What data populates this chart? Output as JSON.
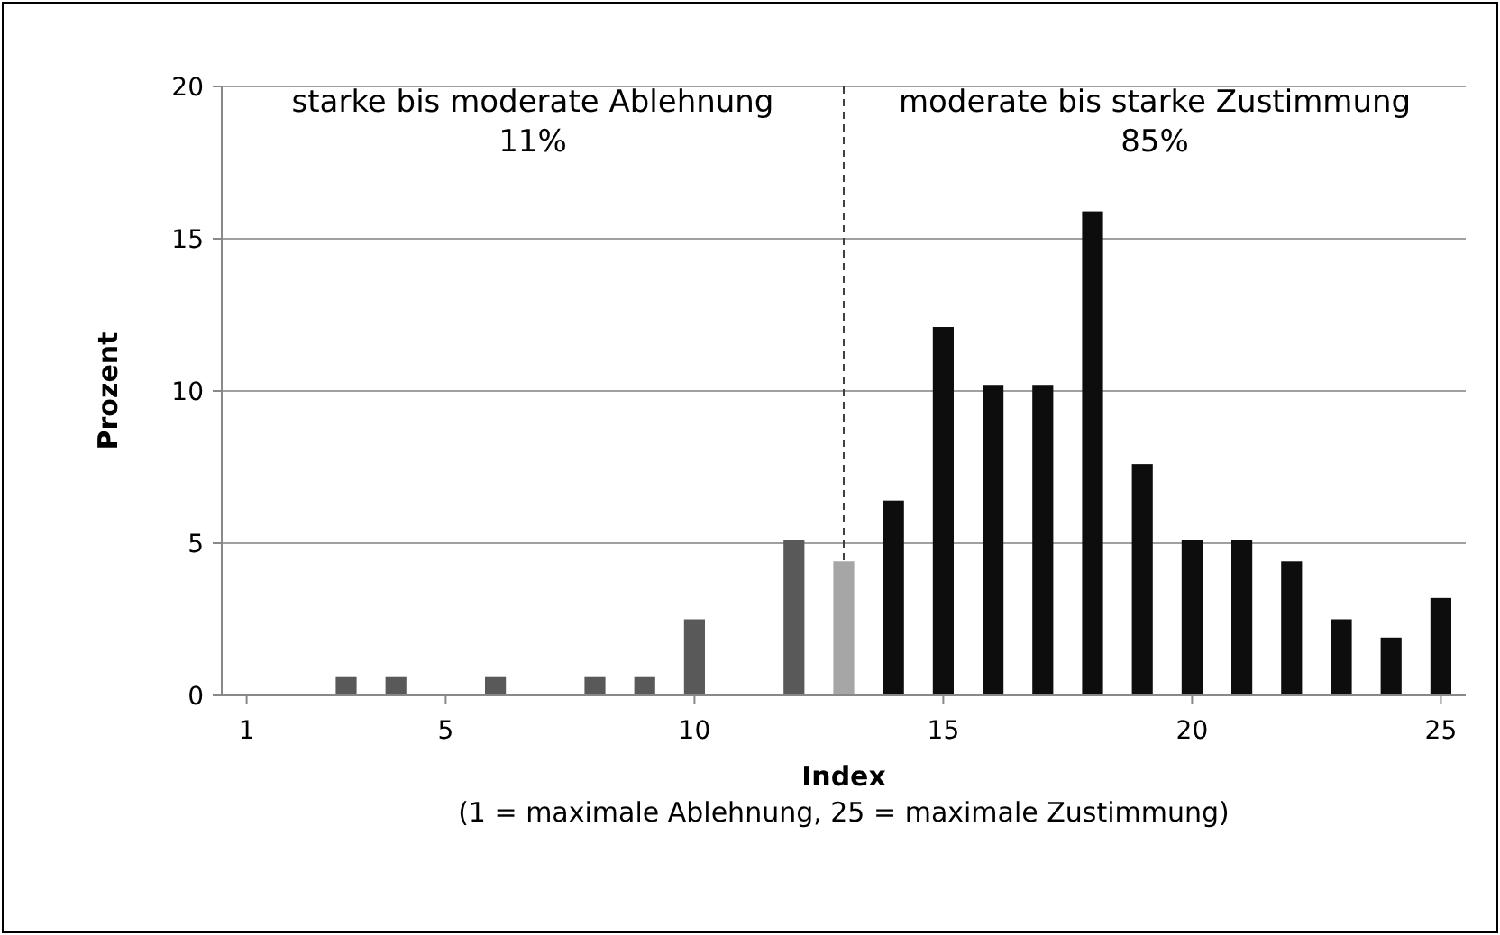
{
  "chart_data": {
    "type": "bar",
    "ylabel": "Prozent",
    "xlabel": "Index",
    "x": [
      1,
      2,
      3,
      4,
      5,
      6,
      7,
      8,
      9,
      10,
      11,
      12,
      13,
      14,
      15,
      16,
      17,
      18,
      19,
      20,
      21,
      22,
      23,
      24,
      25
    ],
    "values": [
      0,
      0,
      0.6,
      0.6,
      0,
      0.6,
      0,
      0.6,
      0.6,
      2.5,
      0,
      5.1,
      4.4,
      6.4,
      12.1,
      10.2,
      10.2,
      15.9,
      7.6,
      5.1,
      5.1,
      4.4,
      2.5,
      1.9,
      3.2
    ],
    "colors": [
      "#595959",
      "#595959",
      "#595959",
      "#595959",
      "#595959",
      "#595959",
      "#595959",
      "#595959",
      "#595959",
      "#595959",
      "#595959",
      "#595959",
      "#a6a6a6",
      "#0d0d0d",
      "#0d0d0d",
      "#0d0d0d",
      "#0d0d0d",
      "#0d0d0d",
      "#0d0d0d",
      "#0d0d0d",
      "#0d0d0d",
      "#0d0d0d",
      "#0d0d0d",
      "#0d0d0d",
      "#0d0d0d"
    ],
    "xlim": [
      0.5,
      25.5
    ],
    "xticks": [
      1,
      5,
      10,
      15,
      20,
      25
    ],
    "ylim": [
      0,
      20
    ],
    "yticks": [
      0,
      5,
      10,
      15,
      20
    ],
    "grid": "y",
    "ref_lines": [
      {
        "axis": "x",
        "value": 13,
        "line_style": "dashed",
        "color": "#404040"
      }
    ],
    "annotations": [
      "starke bis moderate Ablehnung\n11%",
      "moderate bis starke Zustimmung\n85%",
      "(1 = maximale Ablehnung, 25 = maximale Zustimmung)"
    ]
  }
}
